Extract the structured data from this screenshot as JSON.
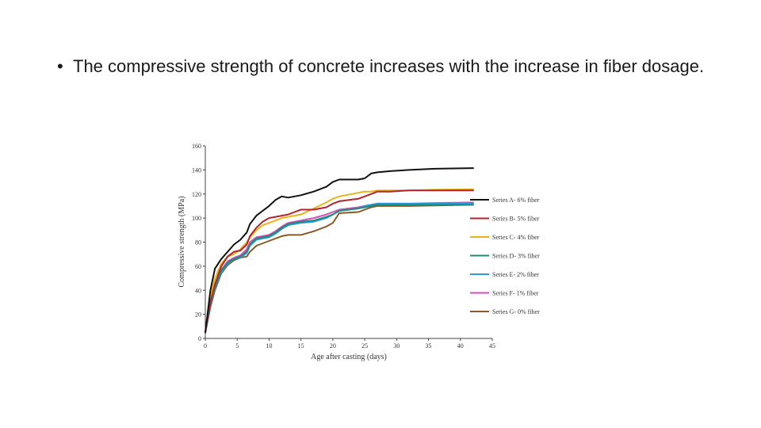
{
  "slide": {
    "bullet_symbol": "•",
    "bullet_text": "The compressive strength of concrete increases with the increase in fiber dosage."
  },
  "chart_data": {
    "type": "line",
    "title": "",
    "xlabel": "Age after casting (days)",
    "ylabel": "Compressive strength (MPa)",
    "xlim": [
      0,
      45
    ],
    "ylim": [
      0,
      160
    ],
    "xticks": [
      0,
      5,
      10,
      15,
      20,
      25,
      30,
      35,
      40,
      45
    ],
    "yticks": [
      0,
      20,
      40,
      60,
      80,
      100,
      120,
      140,
      160
    ],
    "grid": false,
    "legend_position": "right",
    "series": [
      {
        "name": "Series A- 6% fiber",
        "color": "#111111",
        "points": [
          [
            0,
            5
          ],
          [
            0.8,
            40
          ],
          [
            1.5,
            58
          ],
          [
            2.5,
            66
          ],
          [
            3.5,
            72
          ],
          [
            4.5,
            78
          ],
          [
            5.5,
            82
          ],
          [
            6.5,
            88
          ],
          [
            7,
            95
          ],
          [
            8,
            102
          ],
          [
            9,
            106
          ],
          [
            10,
            110
          ],
          [
            11,
            115
          ],
          [
            12,
            118
          ],
          [
            13,
            117
          ],
          [
            14,
            118
          ],
          [
            15,
            119
          ],
          [
            17,
            122
          ],
          [
            19,
            126
          ],
          [
            20,
            130
          ],
          [
            21,
            132
          ],
          [
            24,
            132
          ],
          [
            25,
            133
          ],
          [
            26,
            137
          ],
          [
            27,
            138
          ],
          [
            29,
            139
          ],
          [
            32,
            140
          ],
          [
            36,
            141
          ],
          [
            42,
            141.5
          ]
        ]
      },
      {
        "name": "Series B- 5% fiber",
        "color": "#b3242e",
        "points": [
          [
            0,
            5
          ],
          [
            0.8,
            30
          ],
          [
            1.5,
            45
          ],
          [
            2.5,
            60
          ],
          [
            3.5,
            68
          ],
          [
            4.5,
            72
          ],
          [
            5.5,
            73
          ],
          [
            6.5,
            78
          ],
          [
            7,
            85
          ],
          [
            8,
            92
          ],
          [
            9,
            97
          ],
          [
            10,
            100
          ],
          [
            11,
            101
          ],
          [
            12,
            102
          ],
          [
            13,
            103
          ],
          [
            14,
            105
          ],
          [
            15,
            107
          ],
          [
            17,
            107
          ],
          [
            19,
            109
          ],
          [
            20,
            112
          ],
          [
            21,
            114
          ],
          [
            24,
            116
          ],
          [
            25,
            118
          ],
          [
            26,
            120
          ],
          [
            27,
            122
          ],
          [
            29,
            122
          ],
          [
            32,
            123
          ],
          [
            36,
            123
          ],
          [
            42,
            123
          ]
        ]
      },
      {
        "name": "Series C- 4% fiber",
        "color": "#e8b418",
        "points": [
          [
            0,
            5
          ],
          [
            0.8,
            35
          ],
          [
            1.5,
            50
          ],
          [
            2.5,
            62
          ],
          [
            3.5,
            68
          ],
          [
            4.5,
            70
          ],
          [
            5.5,
            74
          ],
          [
            6.5,
            80
          ],
          [
            7,
            84
          ],
          [
            8,
            90
          ],
          [
            9,
            94
          ],
          [
            10,
            96
          ],
          [
            11,
            98
          ],
          [
            12,
            100
          ],
          [
            13,
            101
          ],
          [
            14,
            102
          ],
          [
            15,
            103
          ],
          [
            17,
            108
          ],
          [
            19,
            113
          ],
          [
            20,
            116
          ],
          [
            21,
            118
          ],
          [
            24,
            121
          ],
          [
            25,
            122
          ],
          [
            26,
            122
          ],
          [
            27,
            123
          ],
          [
            29,
            123
          ],
          [
            32,
            123
          ],
          [
            36,
            123.5
          ],
          [
            42,
            124
          ]
        ]
      },
      {
        "name": "Series D- 3% fiber",
        "color": "#1f8a7a",
        "points": [
          [
            0,
            5
          ],
          [
            0.8,
            28
          ],
          [
            1.5,
            42
          ],
          [
            2.5,
            56
          ],
          [
            3.5,
            63
          ],
          [
            4.5,
            66
          ],
          [
            5.5,
            68
          ],
          [
            6.5,
            72
          ],
          [
            7,
            78
          ],
          [
            8,
            83
          ],
          [
            9,
            84
          ],
          [
            10,
            85
          ],
          [
            11,
            88
          ],
          [
            12,
            92
          ],
          [
            13,
            95
          ],
          [
            14,
            96
          ],
          [
            15,
            97
          ],
          [
            17,
            98
          ],
          [
            19,
            101
          ],
          [
            20,
            103
          ],
          [
            21,
            106
          ],
          [
            24,
            108
          ],
          [
            25,
            109
          ],
          [
            26,
            110
          ],
          [
            27,
            111
          ],
          [
            29,
            111
          ],
          [
            32,
            111
          ],
          [
            36,
            111
          ],
          [
            42,
            111
          ]
        ]
      },
      {
        "name": "Series E- 2% fiber",
        "color": "#2e9be0",
        "points": [
          [
            0,
            5
          ],
          [
            0.8,
            27
          ],
          [
            1.5,
            41
          ],
          [
            2.5,
            55
          ],
          [
            3.5,
            62
          ],
          [
            4.5,
            66
          ],
          [
            5.5,
            67
          ],
          [
            6.5,
            71
          ],
          [
            7,
            77
          ],
          [
            8,
            82
          ],
          [
            9,
            83
          ],
          [
            10,
            84
          ],
          [
            11,
            87
          ],
          [
            12,
            91
          ],
          [
            13,
            94
          ],
          [
            14,
            95
          ],
          [
            15,
            96
          ],
          [
            17,
            97
          ],
          [
            19,
            100
          ],
          [
            20,
            103
          ],
          [
            21,
            106
          ],
          [
            24,
            108
          ],
          [
            25,
            110
          ],
          [
            26,
            111
          ],
          [
            27,
            112
          ],
          [
            29,
            112
          ],
          [
            32,
            112
          ],
          [
            36,
            112
          ],
          [
            42,
            112
          ]
        ]
      },
      {
        "name": "Series F- 1% fiber",
        "color": "#d44fb4",
        "points": [
          [
            0,
            5
          ],
          [
            0.8,
            29
          ],
          [
            1.5,
            43
          ],
          [
            2.5,
            57
          ],
          [
            3.5,
            64
          ],
          [
            4.5,
            67
          ],
          [
            5.5,
            69
          ],
          [
            6.5,
            74
          ],
          [
            7,
            80
          ],
          [
            8,
            84
          ],
          [
            9,
            85
          ],
          [
            10,
            86
          ],
          [
            11,
            89
          ],
          [
            12,
            93
          ],
          [
            13,
            96
          ],
          [
            14,
            97
          ],
          [
            15,
            98
          ],
          [
            17,
            100
          ],
          [
            19,
            103
          ],
          [
            20,
            105
          ],
          [
            21,
            107
          ],
          [
            24,
            109
          ],
          [
            25,
            110
          ],
          [
            26,
            111
          ],
          [
            27,
            112
          ],
          [
            29,
            112
          ],
          [
            32,
            112
          ],
          [
            36,
            112.5
          ],
          [
            42,
            113
          ]
        ]
      },
      {
        "name": "Series G- 0% fiber",
        "color": "#8b5a2b",
        "points": [
          [
            0,
            5
          ],
          [
            0.8,
            26
          ],
          [
            1.5,
            40
          ],
          [
            2.5,
            54
          ],
          [
            3.5,
            61
          ],
          [
            4.5,
            65
          ],
          [
            5.5,
            67
          ],
          [
            6.5,
            68
          ],
          [
            7,
            72
          ],
          [
            8,
            77
          ],
          [
            9,
            79
          ],
          [
            10,
            81
          ],
          [
            11,
            83
          ],
          [
            12,
            85
          ],
          [
            13,
            86
          ],
          [
            14,
            86
          ],
          [
            15,
            86
          ],
          [
            17,
            89
          ],
          [
            19,
            93
          ],
          [
            20,
            96
          ],
          [
            21,
            104
          ],
          [
            24,
            105
          ],
          [
            25,
            107
          ],
          [
            26,
            109
          ],
          [
            27,
            110
          ],
          [
            29,
            110
          ],
          [
            32,
            110
          ],
          [
            36,
            110.5
          ],
          [
            42,
            111
          ]
        ]
      }
    ]
  }
}
